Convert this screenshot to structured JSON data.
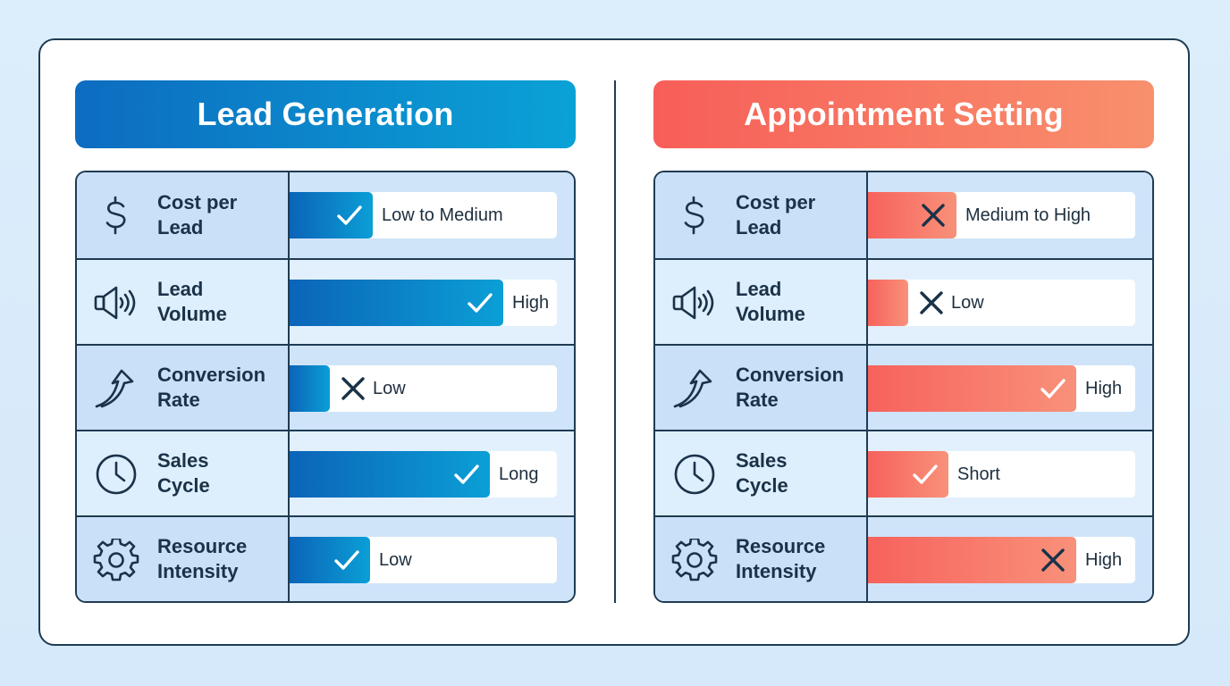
{
  "colors": {
    "lead_accent": "#0b8fd0",
    "appointment_accent": "#f7685e",
    "outline": "#1f3b52"
  },
  "panels": [
    {
      "title": "Lead Generation",
      "theme": "blue",
      "rows": [
        {
          "icon": "dollar-icon",
          "label": "Cost per\nLead",
          "value": "Low to Medium",
          "mark": "check",
          "level": 0.31
        },
        {
          "icon": "megaphone-icon",
          "label": "Lead\nVolume",
          "value": "High",
          "mark": "check",
          "level": 0.8
        },
        {
          "icon": "trend-up-arrow-icon",
          "label": "Conversion\nRate",
          "value": "Low",
          "mark": "cross",
          "level": 0.15
        },
        {
          "icon": "clock-icon",
          "label": "Sales\nCycle",
          "value": "Long",
          "mark": "check",
          "level": 0.75
        },
        {
          "icon": "gear-icon",
          "label": "Resource\nIntensity",
          "value": "Low",
          "mark": "check",
          "level": 0.3
        }
      ]
    },
    {
      "title": "Appointment Setting",
      "theme": "coral",
      "rows": [
        {
          "icon": "dollar-icon",
          "label": "Cost per\nLead",
          "value": "Medium to High",
          "mark": "cross",
          "level": 0.33
        },
        {
          "icon": "megaphone-icon",
          "label": "Lead\nVolume",
          "value": "Low",
          "mark": "cross",
          "level": 0.15
        },
        {
          "icon": "trend-up-arrow-icon",
          "label": "Conversion\nRate",
          "value": "High",
          "mark": "check",
          "level": 0.78
        },
        {
          "icon": "clock-icon",
          "label": "Sales\nCycle",
          "value": "Short",
          "mark": "check",
          "level": 0.3
        },
        {
          "icon": "gear-icon",
          "label": "Resource\nIntensity",
          "value": "High",
          "mark": "cross",
          "level": 0.78
        }
      ]
    }
  ]
}
